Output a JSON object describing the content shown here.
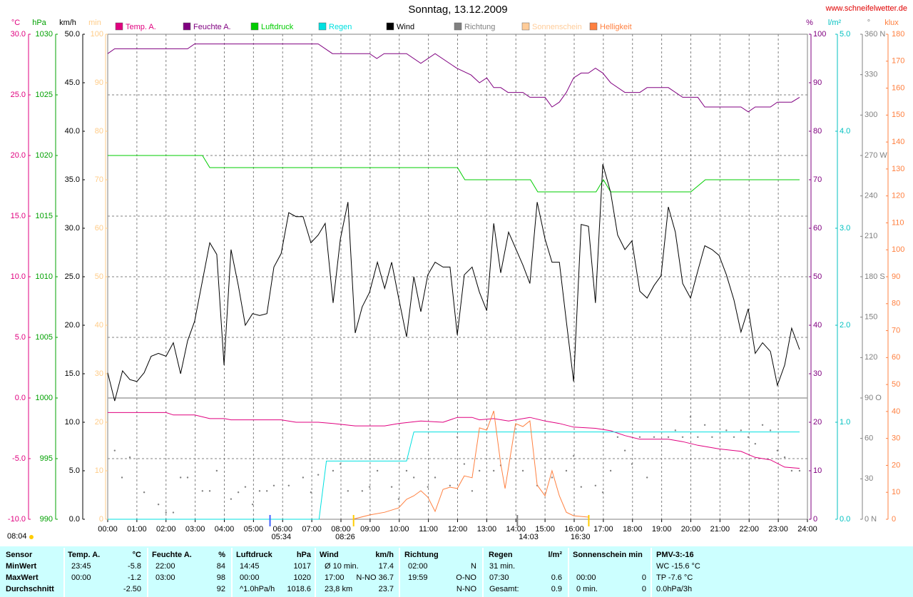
{
  "chart_data": {
    "type": "line",
    "title": "Sonntag, 13.12.2009",
    "source": "www.schneifelwetter.de",
    "xlim": [
      0,
      24
    ],
    "xticks": [
      {
        "value": 0,
        "label": "00:00"
      },
      {
        "value": 1,
        "label": "01:00"
      },
      {
        "value": 2,
        "label": "02:00"
      },
      {
        "value": 3,
        "label": "03:00"
      },
      {
        "value": 4,
        "label": "04:00"
      },
      {
        "value": 5,
        "label": "05:00"
      },
      {
        "value": 6,
        "label": "06:00"
      },
      {
        "value": 7,
        "label": "07:00"
      },
      {
        "value": 8,
        "label": "08:00"
      },
      {
        "value": 9,
        "label": "09:00"
      },
      {
        "value": 10,
        "label": "10:00"
      },
      {
        "value": 11,
        "label": "11:00"
      },
      {
        "value": 12,
        "label": "12:00"
      },
      {
        "value": 13,
        "label": "13:00"
      },
      {
        "value": 14,
        "label": "14:00"
      },
      {
        "value": 15,
        "label": "15:00"
      },
      {
        "value": 16,
        "label": "16:00"
      },
      {
        "value": 17,
        "label": "17:00"
      },
      {
        "value": 18,
        "label": "18:00"
      },
      {
        "value": 19,
        "label": "19:00"
      },
      {
        "value": 20,
        "label": "20:00"
      },
      {
        "value": 21,
        "label": "21:00"
      },
      {
        "value": 22,
        "label": "22:00"
      },
      {
        "value": 23,
        "label": "23:00"
      },
      {
        "value": 24,
        "label": "24:00"
      }
    ],
    "grid": true,
    "axes": [
      {
        "label": "°C",
        "color": "#e0007f",
        "ylim": [
          -10,
          30
        ],
        "yticks": [
          {
            "value": -10,
            "label": "-10.0"
          },
          {
            "value": -5,
            "label": "-5.0"
          },
          {
            "value": 0,
            "label": "0.0"
          },
          {
            "value": 5,
            "label": "5.0"
          },
          {
            "value": 10,
            "label": "10.0"
          },
          {
            "value": 15,
            "label": "15.0"
          },
          {
            "value": 20,
            "label": "20.0"
          },
          {
            "value": 25,
            "label": "25.0"
          },
          {
            "value": 30,
            "label": "30.0"
          }
        ]
      },
      {
        "label": "hPa",
        "color": "#00a000",
        "ylim": [
          990,
          1030
        ],
        "yticks": [
          990,
          995,
          1000,
          1005,
          1010,
          1015,
          1020,
          1025,
          1030
        ]
      },
      {
        "label": "km/h",
        "color": "#000000",
        "ylim": [
          0,
          50
        ],
        "yticks": [
          {
            "value": 0,
            "label": "0.0"
          },
          {
            "value": 5,
            "label": "5.0"
          },
          {
            "value": 10,
            "label": "10.0"
          },
          {
            "value": 15,
            "label": "15.0"
          },
          {
            "value": 20,
            "label": "20.0"
          },
          {
            "value": 25,
            "label": "25.0"
          },
          {
            "value": 30,
            "label": "30.0"
          },
          {
            "value": 35,
            "label": "35.0"
          },
          {
            "value": 40,
            "label": "40.0"
          },
          {
            "value": 45,
            "label": "45.0"
          },
          {
            "value": 50,
            "label": "50.0"
          }
        ]
      },
      {
        "label": "min",
        "color": "#ffcc88",
        "ylim": [
          0,
          100
        ],
        "yticks": [
          0,
          10,
          20,
          30,
          40,
          50,
          60,
          70,
          80,
          90,
          100
        ]
      },
      {
        "label": "%",
        "color": "#800080",
        "ylim": [
          0,
          100
        ],
        "yticks": [
          0,
          10,
          20,
          30,
          40,
          50,
          60,
          70,
          80,
          90,
          100
        ]
      },
      {
        "label": "l/m²",
        "color": "#00c0c0",
        "ylim": [
          0,
          5
        ],
        "yticks": [
          {
            "value": 0,
            "label": "0.0"
          },
          {
            "value": 1,
            "label": "1.0"
          },
          {
            "value": 2,
            "label": "2.0"
          },
          {
            "value": 3,
            "label": "3.0"
          },
          {
            "value": 4,
            "label": "4.0"
          },
          {
            "value": 5,
            "label": "5.0"
          }
        ]
      },
      {
        "label": "°",
        "color": "#808080",
        "ylim": [
          0,
          360
        ],
        "yticks": [
          {
            "value": 0,
            "label": "0 N"
          },
          30,
          60,
          {
            "value": 90,
            "label": "90 O"
          },
          120,
          150,
          {
            "value": 180,
            "label": "180 S"
          },
          210,
          240,
          {
            "value": 270,
            "label": "270 W"
          },
          300,
          330,
          {
            "value": 360,
            "label": "360 N"
          }
        ]
      },
      {
        "label": "klux",
        "color": "#ff8040",
        "ylim": [
          0,
          180
        ],
        "yticks": [
          0,
          10,
          20,
          30,
          40,
          50,
          60,
          70,
          80,
          90,
          100,
          110,
          120,
          130,
          140,
          150,
          160,
          170,
          180
        ]
      }
    ],
    "series": [
      {
        "name": "Temp. A.",
        "color": "#e0007f",
        "axis": 0,
        "x": [
          0,
          2.0,
          2.25,
          2.98,
          3.5,
          4.0,
          4.23,
          5.95,
          6.46,
          7.22,
          7.73,
          8.49,
          9.5,
          9.98,
          10.74,
          11.5,
          11.99,
          12.5,
          12.75,
          13.24,
          13.75,
          14.48,
          15.0,
          15.49,
          15.98,
          16.73,
          17.25,
          17.74,
          18.25,
          19.23,
          19.72,
          20.24,
          20.97,
          21.72,
          22.21,
          22.73,
          23.22,
          23.73
        ],
        "values": [
          -1.2,
          -1.2,
          -1.4,
          -1.4,
          -1.7,
          -1.7,
          -1.8,
          -1.8,
          -2.0,
          -2.0,
          -2.1,
          -2.3,
          -2.3,
          -2.1,
          -1.9,
          -2.0,
          -1.6,
          -1.6,
          -1.8,
          -1.7,
          -1.9,
          -1.6,
          -1.9,
          -2.1,
          -2.4,
          -2.5,
          -2.7,
          -3.1,
          -3.4,
          -3.4,
          -3.6,
          -3.9,
          -4.2,
          -4.4,
          -4.9,
          -5.1,
          -5.7,
          -5.8
        ]
      },
      {
        "name": "Feuchte A.",
        "color": "#800080",
        "axis": 4,
        "x": [
          0,
          0.24,
          2.74,
          2.98,
          7.22,
          7.71,
          8.98,
          9.23,
          9.48,
          10.25,
          10.74,
          11.23,
          11.97,
          12.46,
          12.75,
          13.0,
          13.24,
          13.48,
          13.73,
          14.24,
          14.48,
          15.0,
          15.24,
          15.49,
          15.73,
          15.98,
          16.24,
          16.49,
          16.73,
          16.98,
          17.25,
          17.74,
          18.25,
          18.5,
          19.23,
          19.72,
          20.24,
          20.48,
          21.72,
          21.97,
          22.21,
          22.73,
          22.97,
          23.46,
          23.73
        ],
        "values": [
          96,
          97,
          97,
          98,
          98,
          96,
          96,
          95,
          96,
          96,
          94,
          96,
          93,
          91.6,
          90,
          91,
          89,
          89,
          88,
          88,
          87,
          87,
          85,
          86,
          88,
          91,
          92,
          92,
          93,
          92,
          90,
          88,
          88,
          89,
          89,
          87,
          87,
          85,
          85,
          84,
          85,
          85,
          86,
          86,
          87
        ]
      },
      {
        "name": "Luftdruck",
        "color": "#00cc00",
        "axis": 1,
        "x": [
          0,
          3.25,
          3.5,
          12,
          12.25,
          14.5,
          14.75,
          16.75,
          17.0,
          17.25,
          20.0,
          20.5,
          23.73
        ],
        "values": [
          1020,
          1020,
          1019,
          1019,
          1018,
          1018,
          1017,
          1017,
          1018,
          1017,
          1017,
          1018,
          1018
        ]
      },
      {
        "name": "Regen",
        "color": "#00e0e0",
        "axis": 5,
        "x": [
          0,
          7.25,
          7.5,
          10.25,
          10.5,
          23.73
        ],
        "values": [
          0,
          0,
          0.6,
          0.6,
          0.9,
          0.9
        ]
      },
      {
        "name": "Wind",
        "color": "#000000",
        "axis": 2,
        "x": [
          0,
          0.24,
          0.51,
          0.76,
          1.0,
          1.25,
          1.49,
          1.74,
          2.0,
          2.25,
          2.5,
          2.74,
          2.98,
          3.5,
          3.74,
          3.99,
          4.23,
          4.48,
          4.72,
          4.97,
          5.21,
          5.46,
          5.7,
          5.95,
          6.21,
          6.46,
          6.7,
          6.97,
          7.22,
          7.46,
          7.73,
          7.98,
          8.24,
          8.49,
          8.73,
          8.98,
          9.25,
          9.5,
          9.74,
          9.98,
          10.25,
          10.5,
          10.74,
          10.98,
          11.23,
          11.5,
          11.74,
          11.99,
          12.23,
          12.5,
          12.75,
          13.0,
          13.24,
          13.48,
          13.75,
          14.24,
          14.48,
          14.73,
          15.0,
          15.24,
          15.49,
          15.73,
          15.98,
          16.24,
          16.49,
          16.73,
          16.98,
          17.25,
          17.49,
          17.74,
          17.98,
          18.25,
          18.5,
          18.74,
          18.98,
          19.23,
          19.47,
          19.72,
          19.99,
          20.24,
          20.48,
          20.73,
          20.97,
          21.22,
          21.48,
          21.72,
          21.97,
          22.21,
          22.46,
          22.73,
          22.97,
          23.22,
          23.46,
          23.73
        ],
        "values": [
          15.1,
          12.2,
          15.3,
          14.4,
          14.2,
          15.1,
          16.8,
          17.1,
          16.8,
          18.2,
          15.0,
          18.4,
          20.4,
          28.5,
          27.3,
          15.9,
          27.8,
          24.1,
          20.0,
          21.2,
          21.0,
          21.2,
          26.0,
          27.4,
          31.6,
          31.2,
          31.2,
          28.5,
          29.3,
          30.5,
          22.3,
          28.9,
          32.7,
          19.2,
          21.9,
          23.4,
          26.5,
          23.8,
          26.5,
          22.8,
          18.8,
          25.0,
          21.4,
          25.2,
          26.5,
          26.0,
          26.0,
          19.0,
          25.2,
          26.0,
          23.4,
          21.5,
          30.5,
          25.4,
          29.6,
          26.2,
          24.3,
          32.7,
          28.9,
          26.5,
          26.5,
          20.4,
          14.2,
          30.4,
          30.2,
          22.3,
          36.6,
          33.7,
          29.3,
          27.8,
          28.7,
          23.5,
          22.8,
          24.1,
          25.1,
          32.2,
          29.6,
          24.3,
          22.8,
          25.6,
          28.2,
          27.8,
          27.2,
          25.2,
          22.6,
          19.3,
          21.7,
          17.1,
          18.2,
          17.3,
          13.8,
          15.9,
          19.7,
          17.5
        ]
      },
      {
        "name": "Richtung",
        "color": "#808080",
        "axis": 6,
        "mode": "dots",
        "x": [
          0.24,
          0.49,
          0.76,
          1.25,
          1.74,
          2.0,
          2.25,
          2.5,
          2.74,
          3.25,
          3.5,
          3.74,
          4.23,
          4.48,
          4.72,
          4.97,
          5.21,
          5.46,
          5.7,
          6.21,
          6.7,
          6.97,
          7.22,
          7.73,
          7.98,
          8.24,
          8.73,
          8.98,
          9.25,
          9.74,
          9.98,
          10.25,
          10.5,
          10.98,
          11.23,
          11.74,
          11.99,
          12.23,
          12.5,
          12.75,
          13.24,
          13.48,
          14.24,
          14.73,
          15.24,
          15.73,
          15.98,
          16.24,
          16.73,
          16.98,
          17.25,
          17.49,
          17.74,
          17.98,
          18.25,
          18.5,
          18.74,
          19.23,
          19.47,
          19.72,
          19.99,
          20.24,
          20.48,
          20.73,
          21.22,
          21.48,
          21.72,
          21.97,
          22.21,
          22.46,
          22.73,
          22.97,
          23.22,
          23.46,
          23.73
        ],
        "values": [
          51,
          31,
          46,
          20,
          11,
          5,
          5,
          31,
          31,
          21,
          21,
          36,
          15,
          20,
          24,
          11,
          21,
          21,
          25,
          25,
          31,
          20,
          33,
          36,
          41,
          21,
          21,
          24,
          36,
          24,
          15,
          36,
          31,
          24,
          31,
          25,
          61,
          41,
          21,
          36,
          36,
          40,
          36,
          25,
          31,
          36,
          47,
          24,
          25,
          20,
          36,
          61,
          51,
          41,
          61,
          31,
          61,
          61,
          66,
          61,
          76,
          61,
          70,
          61,
          66,
          61,
          66,
          61,
          56,
          70,
          66,
          51,
          46,
          36,
          36
        ]
      },
      {
        "name": "Sonnenschein",
        "color": "#ffcc99",
        "axis": 3,
        "x": [],
        "values": []
      },
      {
        "name": "Helligkeit",
        "color": "#ff8040",
        "axis": 7,
        "x": [
          8.4,
          8.98,
          9.5,
          9.98,
          10.25,
          10.5,
          10.74,
          10.98,
          11.23,
          11.5,
          11.74,
          11.99,
          12.23,
          12.5,
          12.75,
          13.0,
          13.24,
          13.48,
          13.63,
          13.99,
          14.24,
          14.48,
          14.73,
          15.0,
          15.24,
          15.49,
          15.73,
          15.98,
          16.49
        ],
        "values": [
          0,
          1.6,
          2.6,
          4.2,
          7.4,
          8.7,
          10.6,
          8.2,
          2.9,
          11.1,
          11.9,
          11.4,
          16.1,
          15.4,
          33.9,
          33.1,
          40.2,
          20.6,
          11.4,
          35.5,
          34.4,
          36.5,
          12.7,
          8.7,
          18.0,
          8.7,
          2.6,
          1.3,
          0.8
        ]
      }
    ],
    "markers": [
      {
        "value": 5.567,
        "label": "05:34",
        "color": "#4060ff"
      },
      {
        "value": 8.433,
        "label": "08:26",
        "color": "#ffcc00"
      },
      {
        "value": 14.05,
        "label": "14:03",
        "color": "#808080"
      },
      {
        "value": 16.5,
        "label": "16:30",
        "color": "#ffcc00"
      }
    ],
    "moon_label": "08:04"
  },
  "summary": {
    "header": [
      "Sensor",
      "Temp. A.",
      "°C",
      "Feuchte A.",
      "%",
      "Luftdruck",
      "hPa",
      "Wind",
      "km/h",
      "Richtung",
      "Regen",
      "l/m²",
      "Sonnenschein min",
      "PMV-3:-16"
    ],
    "rows": [
      [
        "MinWert",
        "23:45",
        "-5.8",
        "22:00",
        "84",
        "14:45",
        "1017",
        "Ø 10 min.",
        "17.4",
        "02:00",
        "N",
        "31 min.",
        null,
        null,
        null,
        "WC -15.6 °C"
      ],
      [
        "MaxWert",
        "00:00",
        "-1.2",
        "03:00",
        "98",
        "00:00",
        "1020",
        "17:00",
        "N-NO 36.7",
        "19:59",
        "O-NO",
        "07:30",
        "0.6",
        "00:00",
        "0",
        "TP -7.6 °C"
      ],
      [
        "Durchschnitt",
        null,
        "-2.50",
        null,
        "92",
        "^1.0hPa/h",
        "1018.6",
        "23,8 km",
        "23.7",
        null,
        "N-NO",
        "Gesamt:",
        "0.9",
        "0 min.",
        "0",
        "0.0hPa/3h"
      ]
    ]
  }
}
